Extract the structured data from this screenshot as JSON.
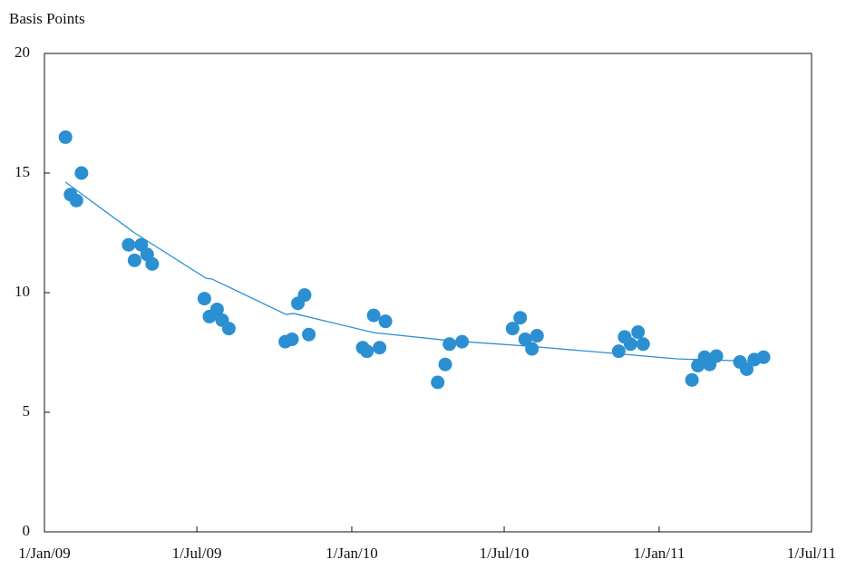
{
  "chart_data": {
    "type": "scatter",
    "y_label": "Basis Points",
    "ylim": [
      0,
      20
    ],
    "yticks": [
      0,
      5,
      10,
      15,
      20
    ],
    "xlim": [
      "2009-01-01",
      "2011-07-01"
    ],
    "xticks": [
      {
        "value": "2009-01-01",
        "label": "1/Jan/09"
      },
      {
        "value": "2009-07-01",
        "label": "1/Jul/09"
      },
      {
        "value": "2010-01-01",
        "label": "1/Jan/10"
      },
      {
        "value": "2010-07-01",
        "label": "1/Jul/10"
      },
      {
        "value": "2011-01-01",
        "label": "1/Jan/11"
      },
      {
        "value": "2011-07-01",
        "label": "1/Jul/11"
      }
    ],
    "color": "#2b8fd2",
    "x": [
      "2009-01-26",
      "2009-02-01",
      "2009-02-08",
      "2009-02-14",
      "2009-04-11",
      "2009-04-18",
      "2009-04-26",
      "2009-05-03",
      "2009-05-09",
      "2009-07-10",
      "2009-07-16",
      "2009-07-25",
      "2009-07-31",
      "2009-08-08",
      "2009-10-14",
      "2009-10-22",
      "2009-10-29",
      "2009-11-06",
      "2009-11-11",
      "2010-01-14",
      "2010-01-19",
      "2010-01-27",
      "2010-02-03",
      "2010-02-10",
      "2010-04-13",
      "2010-04-22",
      "2010-04-27",
      "2010-05-12",
      "2010-07-11",
      "2010-07-20",
      "2010-07-26",
      "2010-08-03",
      "2010-08-09",
      "2010-11-14",
      "2010-11-21",
      "2010-11-28",
      "2010-12-07",
      "2010-12-13",
      "2011-02-09",
      "2011-02-16",
      "2011-02-24",
      "2011-03-02",
      "2011-03-10",
      "2011-04-07",
      "2011-04-15",
      "2011-04-24",
      "2011-05-05"
    ],
    "values": [
      16.5,
      14.1,
      13.85,
      15.0,
      12.0,
      11.35,
      12.0,
      11.6,
      11.2,
      9.75,
      9.0,
      9.3,
      8.85,
      8.5,
      7.95,
      8.05,
      9.55,
      9.9,
      8.25,
      7.7,
      7.55,
      9.05,
      7.7,
      8.8,
      6.25,
      7.0,
      7.85,
      7.95,
      8.5,
      8.95,
      8.05,
      7.65,
      8.2,
      7.55,
      8.15,
      7.85,
      8.35,
      7.85,
      6.35,
      6.95,
      7.3,
      7.0,
      7.35,
      7.1,
      6.8,
      7.2,
      7.3
    ],
    "trend": {
      "color": "#2b8fd2",
      "x": [
        "2009-01-26",
        "2009-04-18",
        "2009-07-12",
        "2009-07-19",
        "2009-10-15",
        "2009-10-24",
        "2010-01-27",
        "2010-04-29",
        "2010-07-27",
        "2010-10-26",
        "2011-01-23",
        "2011-05-05"
      ],
      "values": [
        14.62,
        12.5,
        10.6,
        10.57,
        9.09,
        9.13,
        8.33,
        7.99,
        7.77,
        7.5,
        7.23,
        7.12
      ]
    }
  }
}
